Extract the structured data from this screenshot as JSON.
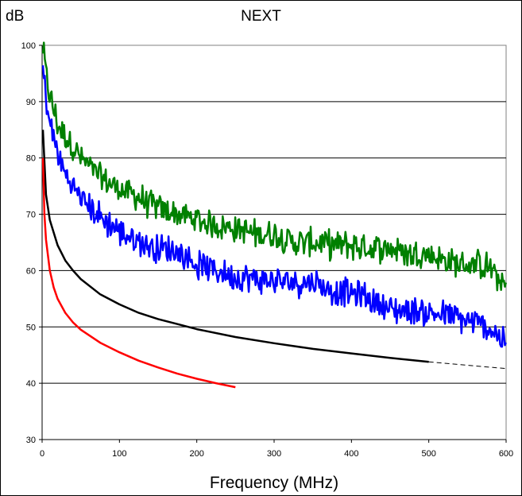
{
  "chart_data": {
    "type": "line",
    "title": "NEXT",
    "y_unit_label": "dB",
    "xlabel": "Frequency (MHz)",
    "ylabel": "",
    "xlim": [
      0,
      600
    ],
    "ylim": [
      30,
      100
    ],
    "x_ticks": [
      0,
      100,
      200,
      300,
      400,
      500,
      600
    ],
    "y_ticks": [
      30,
      40,
      50,
      60,
      70,
      80,
      90,
      100
    ],
    "grid": "horizontal",
    "plot_background": "#ffffff",
    "series": [
      {
        "color": "#008000",
        "style": "noisy-measured",
        "x": [
          1,
          5,
          10,
          20,
          30,
          40,
          50,
          75,
          100,
          125,
          150,
          175,
          200,
          225,
          250,
          275,
          300,
          325,
          350,
          375,
          400,
          425,
          450,
          475,
          500,
          525,
          550,
          575,
          600
        ],
        "y": [
          99.5,
          95,
          91,
          86,
          84,
          82,
          80,
          76.5,
          74.5,
          73,
          71,
          70,
          69,
          68,
          67.5,
          66.5,
          66.5,
          65,
          65,
          64.5,
          64.5,
          64,
          64,
          63,
          63,
          61.5,
          61,
          61,
          57
        ]
      },
      {
        "color": "#0000ff",
        "style": "noisy-measured",
        "x": [
          1,
          5,
          10,
          20,
          30,
          40,
          50,
          75,
          100,
          125,
          150,
          175,
          200,
          225,
          250,
          275,
          300,
          325,
          350,
          375,
          400,
          425,
          450,
          475,
          500,
          525,
          550,
          575,
          600
        ],
        "y": [
          96,
          91,
          86,
          81,
          77,
          75,
          73,
          69.5,
          67,
          65,
          64,
          63.5,
          61,
          60,
          59,
          58.5,
          58,
          58,
          58,
          56.5,
          56,
          55,
          53,
          53,
          52.5,
          52,
          51,
          50,
          47.5
        ]
      },
      {
        "color": "#000000",
        "style": "smooth",
        "x": [
          1,
          5,
          10,
          20,
          30,
          40,
          50,
          75,
          100,
          125,
          150,
          175,
          200,
          250,
          300,
          350,
          400,
          450,
          500
        ],
        "y": [
          85,
          73.5,
          69,
          64.5,
          61.8,
          60,
          58.5,
          55.8,
          54,
          52.5,
          51.4,
          50.5,
          49.6,
          48.2,
          47.1,
          46.1,
          45.3,
          44.5,
          43.8
        ]
      },
      {
        "color": "#000000",
        "style": "dashed-extrapolation",
        "x": [
          500,
          550,
          600
        ],
        "y": [
          43.8,
          43.2,
          42.6
        ]
      },
      {
        "color": "#ff0000",
        "style": "smooth",
        "x": [
          1,
          3,
          5,
          10,
          15,
          20,
          30,
          40,
          50,
          75,
          100,
          125,
          150,
          175,
          200,
          225,
          250
        ],
        "y": [
          80,
          70,
          65.5,
          60,
          57,
          55,
          52.5,
          50.8,
          49.5,
          47.2,
          45.5,
          44,
          42.8,
          41.7,
          40.8,
          40,
          39.3
        ]
      }
    ]
  }
}
